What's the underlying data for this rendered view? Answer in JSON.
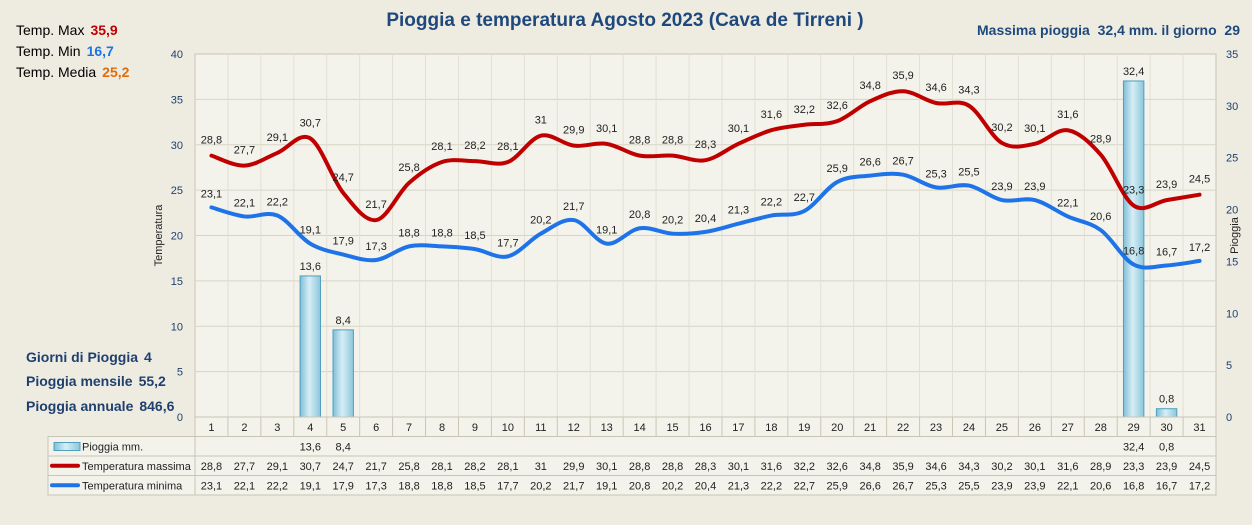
{
  "header": {
    "title": "Pioggia e temperatura Agosto 2023 (Cava de Tirreni )",
    "max_rain_label": "Massima pioggia",
    "max_rain_value": "32,4 mm. il giorno",
    "max_rain_day": "29"
  },
  "stats": {
    "max": {
      "label": "Temp. Max",
      "value": "35,9"
    },
    "min": {
      "label": "Temp. Min",
      "value": "16,7"
    },
    "avg": {
      "label": "Temp. Media",
      "value": "25,2"
    }
  },
  "summary": {
    "rain_days": {
      "label": "Giorni di Pioggia",
      "value": "4"
    },
    "monthly": {
      "label": "Pioggia mensile",
      "value": "55,2"
    },
    "annual": {
      "label": "Pioggia annuale",
      "value": "846,6"
    }
  },
  "colors": {
    "max": "#c00000",
    "min": "#1e73e8",
    "avg": "#e36c09",
    "rain": "#a9d8e8",
    "rain_edge": "#4f9fbf",
    "navy": "#1f3f6f"
  },
  "chart_data": {
    "type": "bar",
    "categories": [
      "1",
      "2",
      "3",
      "4",
      "5",
      "6",
      "7",
      "8",
      "9",
      "10",
      "11",
      "12",
      "13",
      "14",
      "15",
      "16",
      "17",
      "18",
      "19",
      "20",
      "21",
      "22",
      "23",
      "24",
      "25",
      "26",
      "27",
      "28",
      "29",
      "30",
      "31"
    ],
    "ylabel": "Temperatura",
    "y2label": "Pioggia",
    "ylim": [
      0,
      40
    ],
    "y2lim": [
      0,
      35
    ],
    "yticks": [
      "0",
      "5",
      "10",
      "15",
      "20",
      "25",
      "30",
      "35",
      "40"
    ],
    "y2ticks": [
      "0",
      "5",
      "10",
      "15",
      "20",
      "25",
      "30",
      "35"
    ],
    "series": [
      {
        "name": "Pioggia mm.",
        "type": "bar",
        "axis": "right",
        "values": [
          null,
          null,
          null,
          13.6,
          8.4,
          null,
          null,
          null,
          null,
          null,
          null,
          null,
          null,
          null,
          null,
          null,
          null,
          null,
          null,
          null,
          null,
          null,
          null,
          null,
          null,
          null,
          null,
          null,
          32.4,
          0.8,
          null
        ],
        "labels": [
          "",
          "",
          "",
          "13,6",
          "8,4",
          "",
          "",
          "",
          "",
          "",
          "",
          "",
          "",
          "",
          "",
          "",
          "",
          "",
          "",
          "",
          "",
          "",
          "",
          "",
          "",
          "",
          "",
          "",
          "32,4",
          "0,8",
          ""
        ]
      },
      {
        "name": "Temperatura massima",
        "type": "line",
        "axis": "left",
        "values": [
          28.8,
          27.7,
          29.1,
          30.7,
          24.7,
          21.7,
          25.8,
          28.1,
          28.2,
          28.1,
          31,
          29.9,
          30.1,
          28.8,
          28.8,
          28.3,
          30.1,
          31.6,
          32.2,
          32.6,
          34.8,
          35.9,
          34.6,
          34.3,
          30.2,
          30.1,
          31.6,
          28.9,
          23.3,
          23.9,
          24.5
        ],
        "labels": [
          "28,8",
          "27,7",
          "29,1",
          "30,7",
          "24,7",
          "21,7",
          "25,8",
          "28,1",
          "28,2",
          "28,1",
          "31",
          "29,9",
          "30,1",
          "28,8",
          "28,8",
          "28,3",
          "30,1",
          "31,6",
          "32,2",
          "32,6",
          "34,8",
          "35,9",
          "34,6",
          "34,3",
          "30,2",
          "30,1",
          "31,6",
          "28,9",
          "23,3",
          "23,9",
          "24,5"
        ]
      },
      {
        "name": "Temperatura minima",
        "type": "line",
        "axis": "left",
        "values": [
          23.1,
          22.1,
          22.2,
          19.1,
          17.9,
          17.3,
          18.8,
          18.8,
          18.5,
          17.7,
          20.2,
          21.7,
          19.1,
          20.8,
          20.2,
          20.4,
          21.3,
          22.2,
          22.7,
          25.9,
          26.6,
          26.7,
          25.3,
          25.5,
          23.9,
          23.9,
          22.1,
          20.6,
          16.8,
          16.7,
          17.2
        ],
        "labels": [
          "23,1",
          "22,1",
          "22,2",
          "19,1",
          "17,9",
          "17,3",
          "18,8",
          "18,8",
          "18,5",
          "17,7",
          "20,2",
          "21,7",
          "19,1",
          "20,8",
          "20,2",
          "20,4",
          "21,3",
          "22,2",
          "22,7",
          "25,9",
          "26,6",
          "26,7",
          "25,3",
          "25,5",
          "23,9",
          "23,9",
          "22,1",
          "20,6",
          "16,8",
          "16,7",
          "17,2"
        ]
      }
    ]
  }
}
